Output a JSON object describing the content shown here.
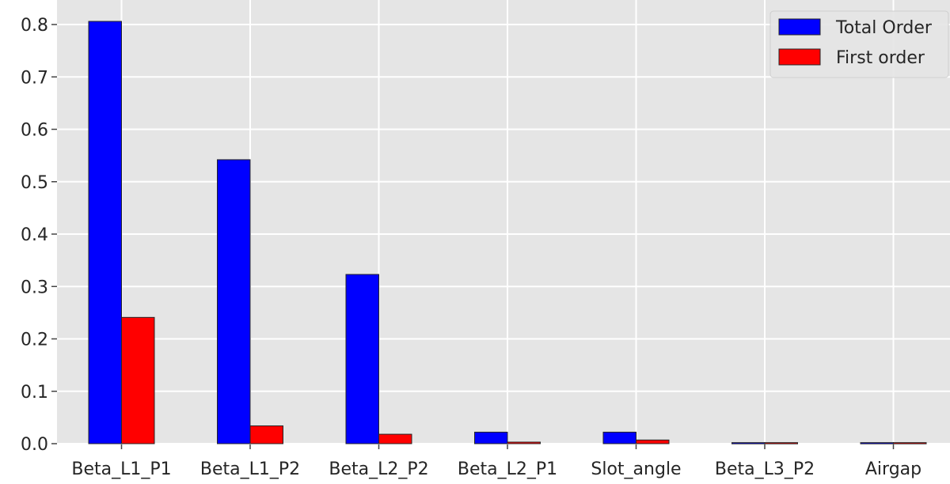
{
  "chart_data": {
    "type": "bar",
    "title": "",
    "xlabel": "",
    "ylabel": "",
    "categories": [
      "Beta_L1_P1",
      "Beta_L1_P2",
      "Beta_L2_P2",
      "Beta_L2_P1",
      "Slot_angle",
      "Beta_L3_P2",
      "Airgap"
    ],
    "series": [
      {
        "name": "Total Order",
        "color": "#0000ff",
        "values": [
          0.806,
          0.542,
          0.323,
          0.022,
          0.022,
          0.002,
          0.002
        ]
      },
      {
        "name": "First order",
        "color": "#ff0000",
        "values": [
          0.241,
          0.034,
          0.018,
          0.003,
          0.007,
          0.002,
          0.002
        ]
      }
    ],
    "ylim": [
      0,
      0.84
    ],
    "yticks": [
      0.0,
      0.1,
      0.2,
      0.3,
      0.4,
      0.5,
      0.6,
      0.7,
      0.8
    ],
    "ytick_labels": [
      "0.0",
      "0.1",
      "0.2",
      "0.3",
      "0.4",
      "0.5",
      "0.6",
      "0.7",
      "0.8"
    ],
    "grid": true,
    "legend_position": "top-right",
    "background_color": "#e5e5e5",
    "grid_color": "#ffffff",
    "edge_color": "#262626"
  }
}
